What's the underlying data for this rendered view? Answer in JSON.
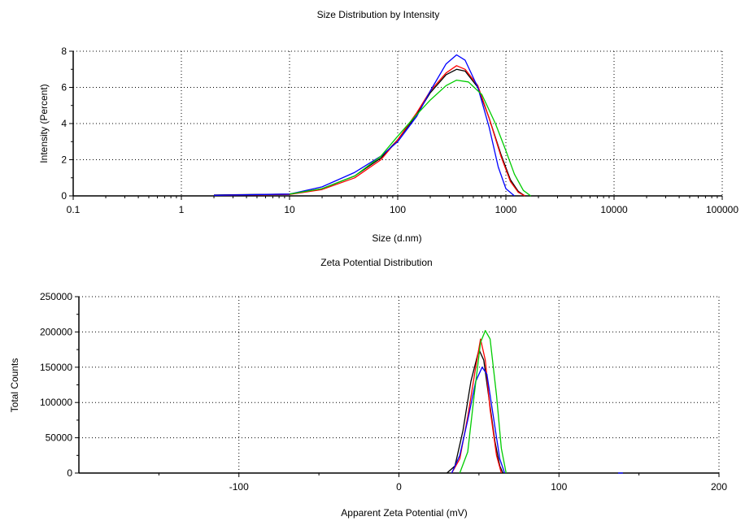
{
  "chart_data": [
    {
      "type": "line",
      "title": "Size Distribution by Intensity",
      "xlabel": "Size (d.nm)",
      "ylabel": "Intensity (Percent)",
      "xscale": "log",
      "xlim": [
        0.1,
        100000
      ],
      "ylim": [
        0,
        8
      ],
      "x_ticks": [
        "0.1",
        "1",
        "10",
        "100",
        "1000",
        "10000",
        "100000"
      ],
      "y_ticks": [
        "0",
        "2",
        "4",
        "6",
        "8"
      ],
      "grid": "dotted",
      "legend": "none",
      "series": [
        {
          "color": "#000000",
          "points": [
            [
              2,
              0.05
            ],
            [
              10,
              0.1
            ],
            [
              20,
              0.4
            ],
            [
              40,
              1.1
            ],
            [
              70,
              2.1
            ],
            [
              100,
              3.1
            ],
            [
              150,
              4.5
            ],
            [
              200,
              5.7
            ],
            [
              280,
              6.7
            ],
            [
              350,
              7.0
            ],
            [
              420,
              6.9
            ],
            [
              550,
              6.0
            ],
            [
              700,
              4.3
            ],
            [
              900,
              2.3
            ],
            [
              1100,
              0.9
            ],
            [
              1300,
              0.25
            ],
            [
              1500,
              0
            ]
          ]
        },
        {
          "color": "#ff0000",
          "points": [
            [
              2,
              0.03
            ],
            [
              10,
              0.08
            ],
            [
              20,
              0.35
            ],
            [
              40,
              1.0
            ],
            [
              70,
              2.0
            ],
            [
              100,
              3.1
            ],
            [
              150,
              4.6
            ],
            [
              200,
              5.8
            ],
            [
              280,
              6.8
            ],
            [
              350,
              7.2
            ],
            [
              420,
              7.0
            ],
            [
              550,
              6.1
            ],
            [
              700,
              4.3
            ],
            [
              900,
              2.2
            ],
            [
              1100,
              0.8
            ],
            [
              1300,
              0.2
            ],
            [
              1500,
              0
            ]
          ]
        },
        {
          "color": "#0000ff",
          "points": [
            [
              2,
              0.03
            ],
            [
              10,
              0.1
            ],
            [
              20,
              0.5
            ],
            [
              40,
              1.3
            ],
            [
              70,
              2.2
            ],
            [
              100,
              3.0
            ],
            [
              150,
              4.4
            ],
            [
              200,
              5.8
            ],
            [
              280,
              7.3
            ],
            [
              350,
              7.8
            ],
            [
              420,
              7.5
            ],
            [
              550,
              6.0
            ],
            [
              700,
              3.8
            ],
            [
              850,
              1.6
            ],
            [
              1000,
              0.4
            ],
            [
              1200,
              0
            ]
          ]
        },
        {
          "color": "#00cc00",
          "points": [
            [
              10,
              0.1
            ],
            [
              20,
              0.4
            ],
            [
              40,
              1.1
            ],
            [
              70,
              2.2
            ],
            [
              100,
              3.3
            ],
            [
              150,
              4.5
            ],
            [
              200,
              5.3
            ],
            [
              280,
              6.1
            ],
            [
              350,
              6.4
            ],
            [
              450,
              6.3
            ],
            [
              600,
              5.6
            ],
            [
              800,
              4.0
            ],
            [
              1000,
              2.5
            ],
            [
              1200,
              1.2
            ],
            [
              1450,
              0.3
            ],
            [
              1700,
              0
            ]
          ]
        }
      ]
    },
    {
      "type": "line",
      "title": "Zeta Potential Distribution",
      "xlabel": "Apparent Zeta Potential (mV)",
      "ylabel": "Total Counts",
      "xlim": [
        -200,
        200
      ],
      "ylim": [
        0,
        250000
      ],
      "x_ticks": [
        "-100",
        "0",
        "100",
        "200"
      ],
      "y_ticks": [
        "0",
        "50000",
        "100000",
        "150000",
        "200000",
        "250000"
      ],
      "grid": "dotted",
      "legend": "none",
      "series": [
        {
          "color": "#000000",
          "points": [
            [
              30,
              0
            ],
            [
              35,
              10000
            ],
            [
              40,
              60000
            ],
            [
              45,
              130000
            ],
            [
              50,
              175000
            ],
            [
              53,
              160000
            ],
            [
              56,
              110000
            ],
            [
              60,
              45000
            ],
            [
              63,
              10000
            ],
            [
              65,
              0
            ]
          ]
        },
        {
          "color": "#ff0000",
          "points": [
            [
              33,
              0
            ],
            [
              38,
              20000
            ],
            [
              43,
              80000
            ],
            [
              48,
              150000
            ],
            [
              51,
              190000
            ],
            [
              54,
              160000
            ],
            [
              57,
              90000
            ],
            [
              61,
              25000
            ],
            [
              64,
              0
            ]
          ]
        },
        {
          "color": "#0000ff",
          "points": [
            [
              33,
              0
            ],
            [
              38,
              25000
            ],
            [
              43,
              75000
            ],
            [
              48,
              130000
            ],
            [
              52,
              150000
            ],
            [
              55,
              140000
            ],
            [
              59,
              80000
            ],
            [
              63,
              20000
            ],
            [
              66,
              0
            ]
          ]
        },
        {
          "color": "#00cc00",
          "points": [
            [
              38,
              0
            ],
            [
              43,
              30000
            ],
            [
              47,
              110000
            ],
            [
              51,
              185000
            ],
            [
              54,
              202000
            ],
            [
              57,
              190000
            ],
            [
              61,
              110000
            ],
            [
              64,
              35000
            ],
            [
              67,
              0
            ]
          ]
        },
        {
          "color": "#0000ff",
          "points": [
            [
              137,
              0
            ],
            [
              140,
              0
            ]
          ]
        }
      ]
    }
  ]
}
